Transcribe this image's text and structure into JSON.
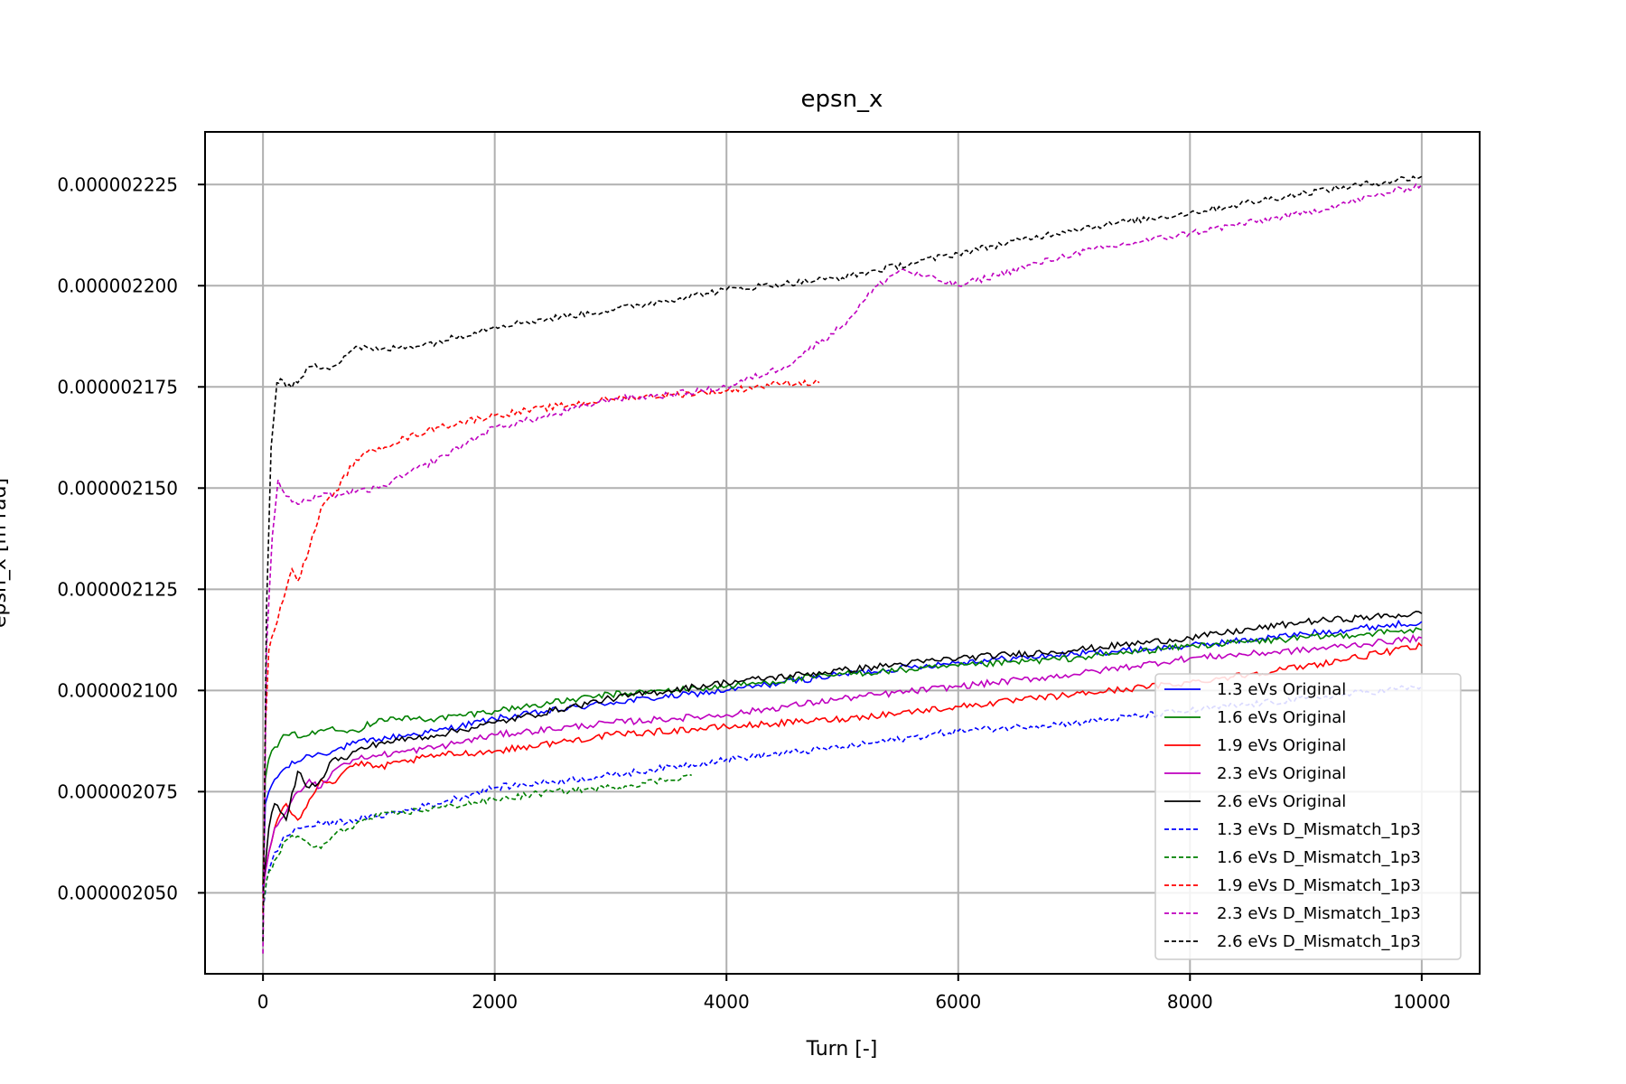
{
  "chart_data": {
    "type": "line",
    "title": "epsn_x",
    "xlabel": "Turn [-]",
    "ylabel": "epsn_x [m rad]",
    "xlim": [
      -500,
      10500
    ],
    "ylim": [
      2.03e-06,
      2.238e-06
    ],
    "xticks": [
      0,
      2000,
      4000,
      6000,
      8000,
      10000
    ],
    "yticks": [
      2.05e-06,
      2.075e-06,
      2.1e-06,
      2.125e-06,
      2.15e-06,
      2.175e-06,
      2.2e-06,
      2.225e-06
    ],
    "xtick_labels": [
      "0",
      "2000",
      "4000",
      "6000",
      "8000",
      "10000"
    ],
    "ytick_labels": [
      "0.000002050",
      "0.000002075",
      "0.000002100",
      "0.000002125",
      "0.000002150",
      "0.000002175",
      "0.000002200",
      "0.000002225"
    ],
    "grid": true,
    "legend_position": "lower-right",
    "series": [
      {
        "name": "1.3 eVs Original",
        "color": "#0000ff",
        "style": "solid",
        "x": [
          0,
          20,
          50,
          100,
          200,
          400,
          600,
          800,
          1000,
          1500,
          2000,
          3000,
          4000,
          5000,
          6000,
          7000,
          8000,
          9000,
          10000
        ],
        "y": [
          2.05e-06,
          2.072e-06,
          2.075e-06,
          2.078e-06,
          2.081e-06,
          2.084e-06,
          2.085e-06,
          2.087e-06,
          2.088e-06,
          2.09e-06,
          2.093e-06,
          2.097e-06,
          2.1e-06,
          2.104e-06,
          2.107e-06,
          2.109e-06,
          2.111e-06,
          2.114e-06,
          2.117e-06
        ]
      },
      {
        "name": "1.6 eVs Original",
        "color": "#008000",
        "style": "solid",
        "x": [
          0,
          20,
          50,
          100,
          200,
          400,
          600,
          800,
          1000,
          1500,
          2000,
          3000,
          4000,
          5000,
          6000,
          7000,
          8000,
          9000,
          10000
        ],
        "y": [
          2.052e-06,
          2.078e-06,
          2.083e-06,
          2.086e-06,
          2.089e-06,
          2.089e-06,
          2.091e-06,
          2.09e-06,
          2.093e-06,
          2.093e-06,
          2.095e-06,
          2.099e-06,
          2.101e-06,
          2.104e-06,
          2.106e-06,
          2.108e-06,
          2.111e-06,
          2.113e-06,
          2.115e-06
        ]
      },
      {
        "name": "1.9 eVs Original",
        "color": "#ff0000",
        "style": "solid",
        "x": [
          0,
          50,
          100,
          200,
          300,
          400,
          500,
          600,
          700,
          800,
          1000,
          1500,
          2000,
          3000,
          4000,
          5000,
          6000,
          7000,
          8000,
          9000,
          10000
        ],
        "y": [
          2.052e-06,
          2.06e-06,
          2.066e-06,
          2.072e-06,
          2.068e-06,
          2.073e-06,
          2.078e-06,
          2.077e-06,
          2.08e-06,
          2.082e-06,
          2.081e-06,
          2.084e-06,
          2.085e-06,
          2.089e-06,
          2.091e-06,
          2.093e-06,
          2.096e-06,
          2.099e-06,
          2.102e-06,
          2.106e-06,
          2.111e-06
        ]
      },
      {
        "name": "2.3 eVs Original",
        "color": "#bf00bf",
        "style": "solid",
        "x": [
          0,
          50,
          100,
          200,
          300,
          400,
          500,
          600,
          700,
          800,
          1000,
          1500,
          2000,
          3000,
          4000,
          5000,
          6000,
          7000,
          8000,
          9000,
          10000
        ],
        "y": [
          2.05e-06,
          2.06e-06,
          2.066e-06,
          2.07e-06,
          2.075e-06,
          2.078e-06,
          2.076e-06,
          2.08e-06,
          2.082e-06,
          2.083e-06,
          2.084e-06,
          2.086e-06,
          2.089e-06,
          2.092e-06,
          2.094e-06,
          2.098e-06,
          2.101e-06,
          2.104e-06,
          2.108e-06,
          2.11e-06,
          2.113e-06
        ]
      },
      {
        "name": "2.6 eVs Original",
        "color": "#000000",
        "style": "solid",
        "x": [
          0,
          50,
          100,
          150,
          200,
          300,
          400,
          500,
          600,
          700,
          800,
          1000,
          1500,
          2000,
          3000,
          4000,
          5000,
          6000,
          7000,
          8000,
          9000,
          10000
        ],
        "y": [
          2.052e-06,
          2.066e-06,
          2.072e-06,
          2.07e-06,
          2.068e-06,
          2.08e-06,
          2.076e-06,
          2.078e-06,
          2.083e-06,
          2.083e-06,
          2.085e-06,
          2.087e-06,
          2.089e-06,
          2.092e-06,
          2.098e-06,
          2.102e-06,
          2.105e-06,
          2.108e-06,
          2.11e-06,
          2.113e-06,
          2.117e-06,
          2.119e-06
        ]
      },
      {
        "name": "1.3 eVs D_Mismatch_1p3",
        "color": "#0000ff",
        "style": "dashed",
        "x": [
          0,
          30,
          100,
          200,
          300,
          500,
          800,
          1000,
          1500,
          2000,
          3000,
          4000,
          5000,
          6000,
          7000,
          8000,
          9000,
          10000
        ],
        "y": [
          2.046e-06,
          2.053e-06,
          2.06e-06,
          2.064e-06,
          2.066e-06,
          2.067e-06,
          2.068e-06,
          2.069e-06,
          2.072e-06,
          2.076e-06,
          2.079e-06,
          2.083e-06,
          2.086e-06,
          2.09e-06,
          2.092e-06,
          2.095e-06,
          2.098e-06,
          2.101e-06
        ]
      },
      {
        "name": "1.6 eVs D_Mismatch_1p3",
        "color": "#008000",
        "style": "dashed",
        "x": [
          0,
          30,
          100,
          200,
          300,
          400,
          500,
          600,
          800,
          1000,
          1500,
          2000,
          2500,
          3000,
          3500,
          3700
        ],
        "y": [
          2.046e-06,
          2.053e-06,
          2.058e-06,
          2.063e-06,
          2.064e-06,
          2.062e-06,
          2.061e-06,
          2.064e-06,
          2.067e-06,
          2.069e-06,
          2.071e-06,
          2.073e-06,
          2.075e-06,
          2.076e-06,
          2.078e-06,
          2.079e-06
        ]
      },
      {
        "name": "1.9 eVs D_Mismatch_1p3",
        "color": "#ff0000",
        "style": "dashed",
        "x": [
          0,
          20,
          50,
          100,
          200,
          250,
          300,
          400,
          500,
          600,
          800,
          1000,
          1500,
          2000,
          3000,
          4000,
          4500,
          4800
        ],
        "y": [
          2.045e-06,
          2.09e-06,
          2.11e-06,
          2.115e-06,
          2.125e-06,
          2.13e-06,
          2.127e-06,
          2.135e-06,
          2.145e-06,
          2.148e-06,
          2.157e-06,
          2.16e-06,
          2.165e-06,
          2.168e-06,
          2.172e-06,
          2.174e-06,
          2.176e-06,
          2.176e-06
        ]
      },
      {
        "name": "2.3 eVs D_Mismatch_1p3",
        "color": "#bf00bf",
        "style": "dashed",
        "x": [
          0,
          30,
          80,
          130,
          200,
          300,
          500,
          800,
          1000,
          1500,
          2000,
          2500,
          3000,
          3500,
          4000,
          4500,
          5000,
          5300,
          5500,
          6000,
          7000,
          8000,
          9000,
          10000
        ],
        "y": [
          2.035e-06,
          2.11e-06,
          2.138e-06,
          2.152e-06,
          2.148e-06,
          2.146e-06,
          2.148e-06,
          2.149e-06,
          2.15e-06,
          2.157e-06,
          2.165e-06,
          2.168e-06,
          2.172e-06,
          2.173e-06,
          2.175e-06,
          2.18e-06,
          2.19e-06,
          2.2e-06,
          2.204e-06,
          2.2e-06,
          2.208e-06,
          2.213e-06,
          2.218e-06,
          2.225e-06
        ]
      },
      {
        "name": "2.6 eVs D_Mismatch_1p3",
        "color": "#000000",
        "style": "dashed",
        "x": [
          0,
          30,
          70,
          120,
          150,
          200,
          300,
          400,
          600,
          800,
          1000,
          1500,
          2000,
          3000,
          4000,
          5000,
          6000,
          7000,
          8000,
          9000,
          10000
        ],
        "y": [
          2.038e-06,
          2.12e-06,
          2.16e-06,
          2.176e-06,
          2.177e-06,
          2.175e-06,
          2.176e-06,
          2.18e-06,
          2.18e-06,
          2.185e-06,
          2.184e-06,
          2.186e-06,
          2.19e-06,
          2.194e-06,
          2.199e-06,
          2.202e-06,
          2.208e-06,
          2.214e-06,
          2.218e-06,
          2.223e-06,
          2.227e-06
        ]
      }
    ]
  }
}
